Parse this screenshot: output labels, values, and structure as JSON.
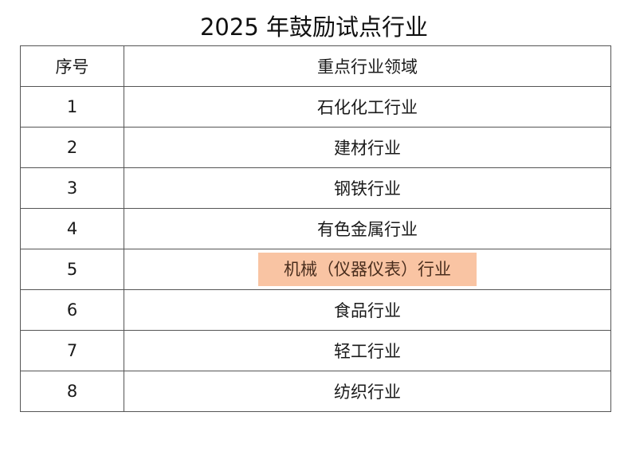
{
  "title": "2025 年鼓励试点行业",
  "table": {
    "headers": [
      "序号",
      "重点行业领域"
    ],
    "rows": [
      {
        "no": "1",
        "field": "石化化工行业"
      },
      {
        "no": "2",
        "field": "建材行业"
      },
      {
        "no": "3",
        "field": "钢铁行业"
      },
      {
        "no": "4",
        "field": "有色金属行业"
      },
      {
        "no": "5",
        "field": "机械（仪器仪表）行业",
        "highlighted": true
      },
      {
        "no": "6",
        "field": "食品行业"
      },
      {
        "no": "7",
        "field": "轻工行业"
      },
      {
        "no": "8",
        "field": "纺织行业"
      }
    ]
  },
  "colors": {
    "highlight": "#f9c4a3",
    "highlight_text": "#4a2e1e",
    "border": "#555555"
  }
}
